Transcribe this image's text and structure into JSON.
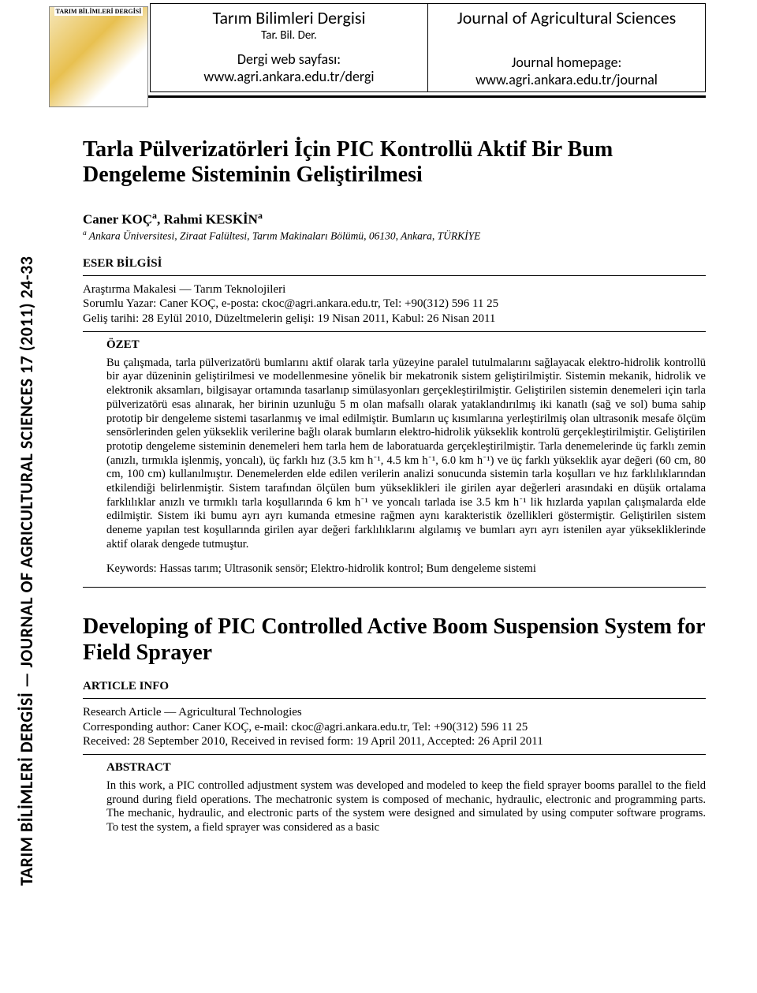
{
  "logo_caption": "TARIM BİLİMLERİ DERGİSİ",
  "header": {
    "left": {
      "title": "Tarım Bilimleri Dergisi",
      "abbr": "Tar. Bil. Der.",
      "homepage_label": "Dergi web sayfası:",
      "homepage_url": "www.agri.ankara.edu.tr/dergi"
    },
    "right": {
      "title": "Journal of Agricultural Sciences",
      "homepage_label": "Journal homepage:",
      "homepage_url": "www.agri.ankara.edu.tr/journal"
    }
  },
  "side_text": "TARIM BİLİMLERİ DERGİSİ — JOURNAL OF AGRICULTURAL SCIENCES  17 (2011) 24-33",
  "article": {
    "title_tr": "Tarla Pülverizatörleri İçin PIC Kontrollü Aktif Bir Bum Dengeleme Sisteminin Geliştirilmesi",
    "authors_html": "Caner KOÇ<sup>a</sup>, Rahmi KESKİN<sup>a</sup>",
    "affil_html": "<sup>a</sup> Ankara Üniversitesi, Ziraat Falültesi, Tarım Makinaları Bölümü, 06130, Ankara, TÜRKİYE",
    "eser_head": "ESER BİLGİSİ",
    "eser_line1": "Araştırma Makalesi — Tarım Teknolojileri",
    "eser_line2": "Sorumlu Yazar: Caner KOÇ, e-posta: ckoc@agri.ankara.edu.tr, Tel: +90(312) 596 11 25",
    "eser_line3": "Geliş tarihi: 28 Eylül 2010, Düzeltmelerin gelişi: 19 Nisan 2011, Kabul: 26 Nisan 2011",
    "ozet_head": "ÖZET",
    "ozet_body": "Bu çalışmada, tarla pülverizatörü bumlarını aktif olarak tarla yüzeyine paralel tutulmalarını sağlayacak elektro-hidrolik kontrollü bir ayar düzeninin geliştirilmesi ve modellenmesine yönelik bir mekatronik sistem geliştirilmiştir. Sistemin mekanik, hidrolik ve elektronik aksamları, bilgisayar ortamında tasarlanıp simülasyonları gerçekleştirilmiştir. Geliştirilen sistemin denemeleri için tarla pülverizatörü esas alınarak, her birinin uzunluğu 5 m olan mafsallı olarak yataklandırılmış iki kanatlı (sağ ve sol) buma sahip prototip bir dengeleme sistemi tasarlanmış ve imal edilmiştir. Bumların uç kısımlarına yerleştirilmiş olan ultrasonik mesafe ölçüm sensörlerinden gelen yükseklik verilerine bağlı olarak bumların elektro-hidrolik yükseklik kontrolü gerçekleştirilmiştir. Geliştirilen prototip dengeleme sisteminin denemeleri hem tarla hem de laboratuarda gerçekleştirilmiştir. Tarla denemelerinde üç farklı zemin (anızlı, tırmıkla işlenmiş, yoncalı), üç farklı hız (3.5 km h⁻¹, 4.5 km h⁻¹, 6.0 km h⁻¹) ve üç farklı yükseklik ayar değeri (60 cm, 80 cm, 100 cm) kullanılmıştır. Denemelerden elde edilen verilerin analizi sonucunda sistemin tarla koşulları ve hız farklılıklarından etkilendiği belirlenmiştir. Sistem tarafından ölçülen bum yükseklikleri ile girilen ayar değerleri arasındaki en düşük ortalama farklılıklar anızlı ve tırmıklı tarla koşullarında 6 km h⁻¹ ve yoncalı tarlada ise 3.5 km h⁻¹ lik hızlarda yapılan çalışmalarda elde edilmiştir. Sistem iki bumu ayrı ayrı kumanda etmesine rağmen aynı karakteristik özellikleri göstermiştir. Geliştirilen sistem deneme yapılan test koşullarında girilen ayar değeri farklılıklarını algılamış ve bumları ayrı ayrı istenilen ayar yüksekliklerinde aktif olarak dengede tutmuştur.",
    "keywords_tr": "Keywords: Hassas tarım; Ultrasonik sensör; Elektro-hidrolik kontrol; Bum dengeleme sistemi",
    "title_en": "Developing of PIC Controlled Active Boom Suspension System for Field Sprayer",
    "artinfo_head": "ARTICLE INFO",
    "artinfo_line1": "Research Article — Agricultural Technologies",
    "artinfo_line2": "Corresponding author: Caner KOÇ, e-mail: ckoc@agri.ankara.edu.tr, Tel: +90(312) 596 11 25",
    "artinfo_line3": "Received: 28 September 2010, Received in revised form: 19 April 2011, Accepted: 26 April 2011",
    "abstract_head": "ABSTRACT",
    "abstract_body": "In this work, a PIC controlled adjustment system was developed and modeled to keep the field sprayer booms parallel to the field ground during field operations. The mechatronic system is composed of mechanic, hydraulic, electronic and programming parts. The mechanic, hydraulic, and electronic parts of the system were designed and simulated by using computer software programs. To test the system, a field sprayer was considered as a basic"
  },
  "colors": {
    "rule": "#000000",
    "background": "#ffffff",
    "text": "#000000"
  },
  "fonts": {
    "body": "Times New Roman",
    "header": "Calibri",
    "title_size_pt": 21,
    "body_size_pt": 11
  }
}
